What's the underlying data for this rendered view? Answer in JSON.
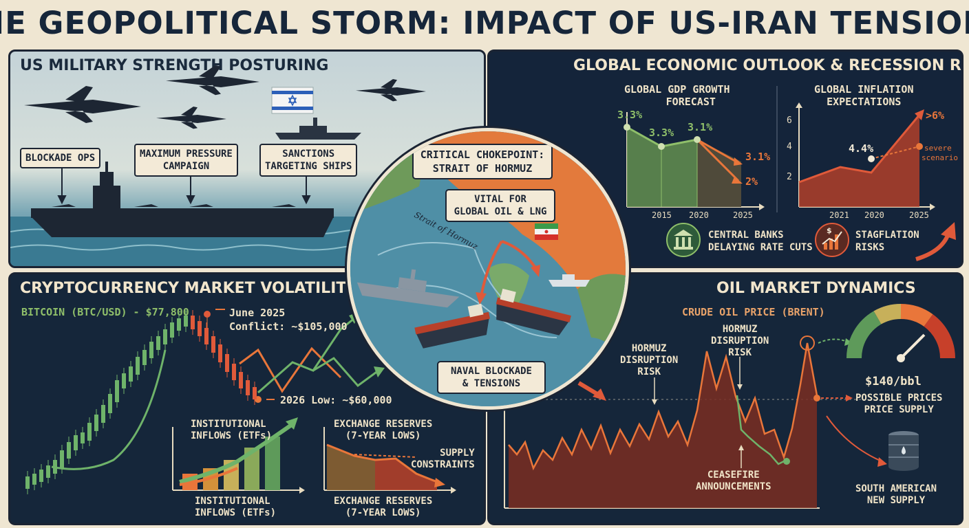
{
  "title": "THE GEOPOLITICAL STORM: IMPACT OF US-IRAN TENSIONS",
  "military": {
    "title": "US MILITARY STRENGTH POSTURING",
    "tags": {
      "blockade": "BLOCKADE OPS",
      "pressure_1": "MAXIMUM PRESSURE",
      "pressure_2": "CAMPAIGN",
      "sanctions_1": "SANCTIONS",
      "sanctions_2": "TARGETING SHIPS"
    }
  },
  "economy": {
    "title": "GLOBAL ECONOMIC OUTLOOK & RECESSION RISKS",
    "gdp": {
      "title_1": "GLOBAL GDP GROWTH",
      "title_2": "FORECAST",
      "labels": [
        "3.3%",
        "3.3%",
        "3.1%",
        "3.1%",
        "2%"
      ],
      "x_ticks": [
        "2015",
        "2020",
        "2025"
      ]
    },
    "inflation": {
      "title_1": "GLOBAL INFLATION",
      "title_2": "EXPECTATIONS",
      "y_ticks": [
        "6",
        "4",
        "2"
      ],
      "x_ticks": [
        "2021",
        "2020",
        "2025"
      ],
      "point": "4.4%",
      "peak": ">6%",
      "severe_1": "severe",
      "severe_2": "scenario"
    },
    "banks_1": "CENTRAL BANKS",
    "banks_2": "DELAYING RATE CUTS",
    "stag_1": "STAGFLATION",
    "stag_2": "RISKS"
  },
  "hormuz": {
    "title_1": "CRITICAL CHOKEPOINT:",
    "title_2": "STRAIT OF HORMUZ",
    "vital_1": "VITAL FOR",
    "vital_2": "GLOBAL OIL & LNG",
    "strait_label": "Strait of Hormuz",
    "naval_1": "NAVAL BLOCKADE",
    "naval_2": "& TENSIONS"
  },
  "crypto": {
    "title": "CRYPTOCURRENCY MARKET VOLATILITY",
    "btc": "BITCOIN (BTC/USD) - $77,800",
    "june_1": "June 2025",
    "june_2": "Conflict: ~$105,000",
    "low": "2026 Low: ~$60,000",
    "inst_1": "INSTITUTIONAL",
    "inst_2": "INFLOWS (ETFs)",
    "inst_b1": "INSTITUTIONAL",
    "inst_b2": "INFLOWS (ETFs)",
    "res_1": "EXCHANGE RESERVES",
    "res_2": "(7-YEAR LOWS)",
    "res_b1": "EXCHANGE RESERVES",
    "res_b2": "(7-YEAR LOWS)",
    "supply_1": "SUPPLY",
    "supply_2": "CONSTRAINTS"
  },
  "oil": {
    "title": "OIL MARKET DYNAMICS",
    "subtitle": "CRUDE OIL PRICE (BRENT)",
    "risk1_1": "HORMUZ",
    "risk1_2": "DISRUPTION",
    "risk1_3": "RISK",
    "risk2_1": "HORMUZ",
    "risk2_2": "DISRUPTION",
    "risk2_3": "RISK",
    "cease_1": "CEASEFIRE",
    "cease_2": "ANNOUNCEMENTS",
    "price": "$140/bbl",
    "possible_1": "POSSIBLE PRICES",
    "possible_2": "PRICE SUPPLY",
    "sa_1": "SOUTH AMERICAN",
    "sa_2": "NEW SUPPLY"
  },
  "colors": {
    "navy": "#15263a",
    "cream": "#efe6d2",
    "green": "#5e9a5a",
    "red": "#d4512f",
    "orange": "#e9763a"
  }
}
